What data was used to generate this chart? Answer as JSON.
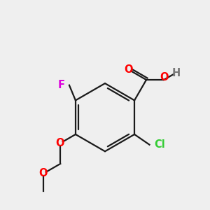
{
  "background_color": "#efefef",
  "bond_color": "#1a1a1a",
  "colors": {
    "O": "#ff0000",
    "F": "#dd00dd",
    "Cl": "#33cc33",
    "H": "#777777",
    "C": "#1a1a1a"
  },
  "font_size": 10.5,
  "lw": 1.6
}
